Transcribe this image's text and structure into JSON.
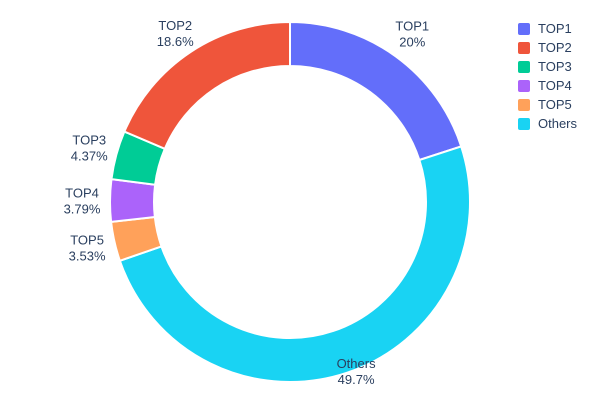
{
  "chart_data": {
    "type": "pie",
    "subtype": "donut",
    "hole": 0.75,
    "labels": [
      "TOP1",
      "TOP2",
      "TOP3",
      "TOP4",
      "TOP5",
      "Others"
    ],
    "values": [
      20,
      18.6,
      4.37,
      3.79,
      3.53,
      49.7
    ],
    "display_percents": [
      "20%",
      "18.6%",
      "4.37%",
      "3.79%",
      "3.53%",
      "49.7%"
    ],
    "colors": [
      "#636EFA",
      "#EF553B",
      "#00CC96",
      "#AB63FA",
      "#FFA15A",
      "#19D3F3"
    ],
    "draw_order": [
      0,
      5,
      4,
      3,
      2,
      1
    ],
    "rotation_clockwise_from_top": true,
    "title": "",
    "text_color": "#2a3f5f",
    "background": "#ffffff",
    "slice_border_color": "#ffffff",
    "legend": {
      "position": "right",
      "entries": [
        "TOP1",
        "TOP2",
        "TOP3",
        "TOP4",
        "TOP5",
        "Others"
      ]
    }
  }
}
